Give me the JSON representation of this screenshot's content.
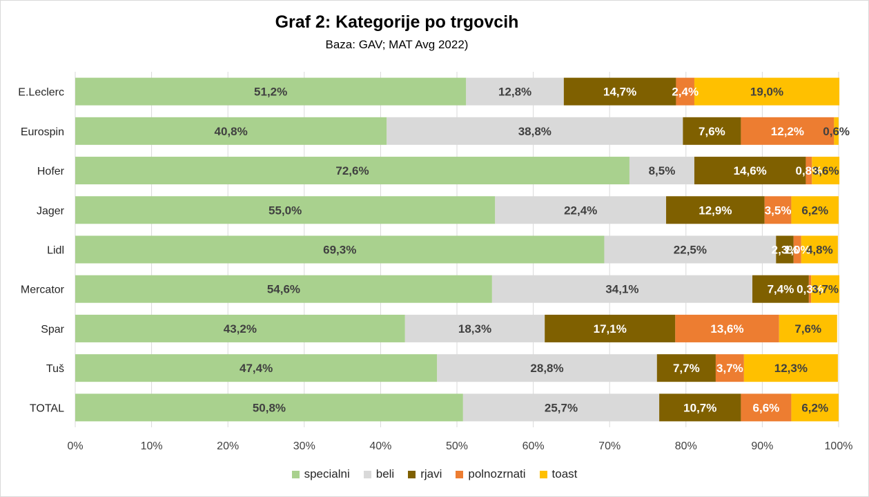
{
  "chart_data": {
    "type": "bar",
    "orientation": "horizontal",
    "stacked": "percent",
    "title": "Graf 2: Kategorije po trgovcih",
    "subtitle": "Baza: GAV; MAT Avg 2022)",
    "categories": [
      "E.Leclerc",
      "Eurospin",
      "Hofer",
      "Jager",
      "Lidl",
      "Mercator",
      "Spar",
      "Tuš",
      "TOTAL"
    ],
    "series": [
      {
        "name": "specialni",
        "color": "#a9d18e",
        "label_color": "#404040",
        "values": [
          51.2,
          40.8,
          72.6,
          55.0,
          69.3,
          54.6,
          43.2,
          47.4,
          50.8
        ],
        "labels": [
          "51,2%",
          "40,8%",
          "72,6%",
          "55,0%",
          "69,3%",
          "54,6%",
          "43,2%",
          "47,4%",
          "50,8%"
        ]
      },
      {
        "name": "beli",
        "color": "#d9d9d9",
        "label_color": "#404040",
        "values": [
          12.8,
          38.8,
          8.5,
          22.4,
          22.5,
          34.1,
          18.3,
          28.8,
          25.7
        ],
        "labels": [
          "12,8%",
          "38,8%",
          "8,5%",
          "22,4%",
          "22,5%",
          "34,1%",
          "18,3%",
          "28,8%",
          "25,7%"
        ]
      },
      {
        "name": "rjavi",
        "color": "#7f6000",
        "label_color": "#ffffff",
        "values": [
          14.7,
          7.6,
          14.6,
          12.9,
          2.3,
          7.4,
          17.1,
          7.7,
          10.7
        ],
        "labels": [
          "14,7%",
          "7,6%",
          "14,6%",
          "12,9%",
          "2,3%",
          "7,4%",
          "17,1%",
          "7,7%",
          "10,7%"
        ]
      },
      {
        "name": "polnozrnati",
        "color": "#ed7d31",
        "label_color": "#ffffff",
        "values": [
          2.4,
          12.2,
          0.8,
          3.5,
          1.0,
          0.3,
          13.6,
          3.7,
          6.6
        ],
        "labels": [
          "2,4%",
          "12,2%",
          "0,8%",
          "3,5%",
          "1,0%",
          "0,3%",
          "13,6%",
          "3,7%",
          "6,6%"
        ]
      },
      {
        "name": "toast",
        "color": "#ffc000",
        "label_color": "#404040",
        "values": [
          19.0,
          0.6,
          3.6,
          6.2,
          4.8,
          3.7,
          7.6,
          12.3,
          6.2
        ],
        "labels": [
          "19,0%",
          "0,6%",
          "3,6%",
          "6,2%",
          "4,8%",
          "3,7%",
          "7,6%",
          "12,3%",
          "6,2%"
        ]
      }
    ],
    "xlim": [
      0,
      100
    ],
    "xticks": [
      "0%",
      "10%",
      "20%",
      "30%",
      "40%",
      "50%",
      "60%",
      "70%",
      "80%",
      "90%",
      "100%"
    ],
    "grid": "vertical",
    "legend": "bottom"
  }
}
